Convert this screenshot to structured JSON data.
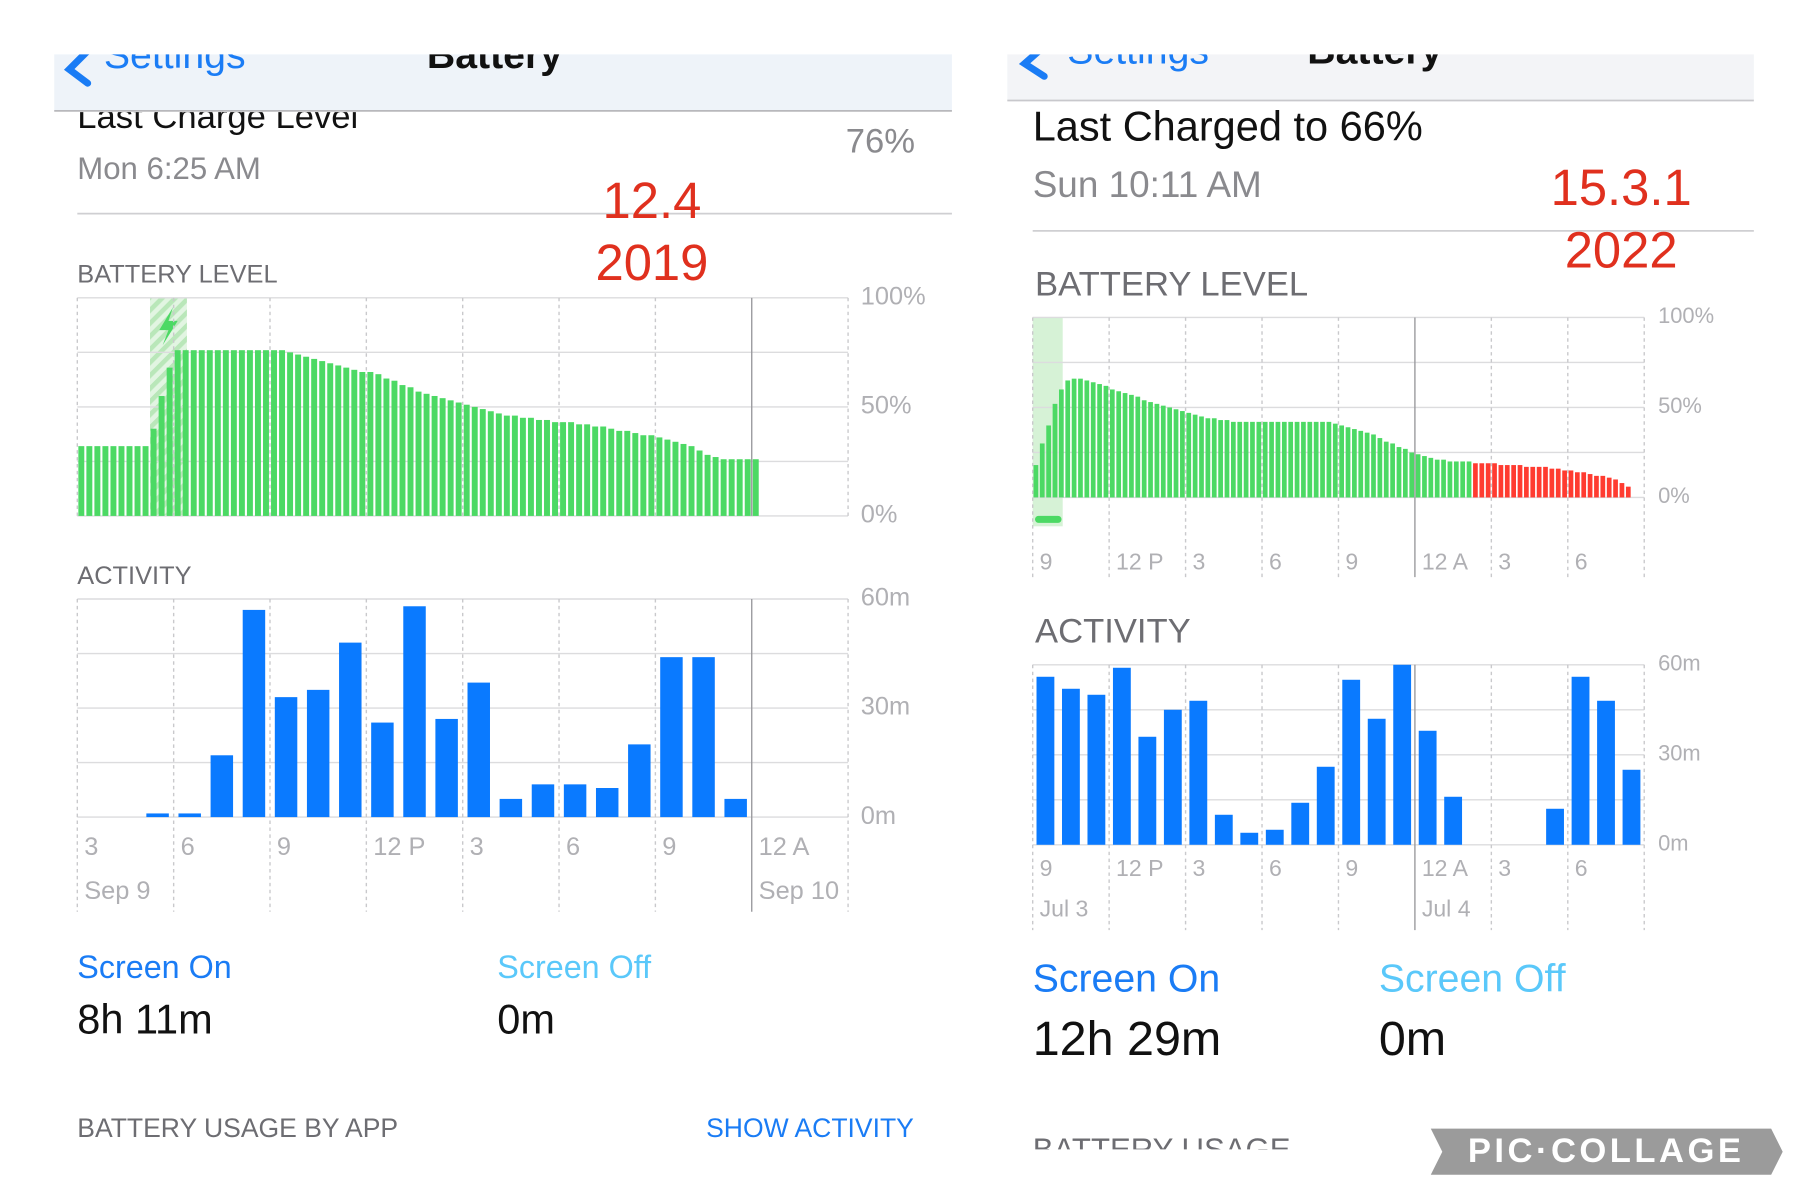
{
  "panels": [
    {
      "nav": {
        "back": "Settings",
        "title": "Battery"
      },
      "charge": {
        "title": "Last Charge Level",
        "time": "Mon 6:25 AM",
        "level": "76%"
      },
      "annotation": [
        "12.4",
        "2019"
      ],
      "battery": {
        "type": "bar",
        "title": "BATTERY LEVEL",
        "color": "#4cd964",
        "values": [
          32,
          32,
          32,
          32,
          32,
          32,
          32,
          32,
          32,
          40,
          55,
          68,
          76,
          76,
          76,
          76,
          76,
          76,
          76,
          76,
          76,
          76,
          76,
          76,
          76,
          76,
          75,
          74,
          73,
          72,
          71,
          70,
          69,
          68,
          67,
          66,
          66,
          65,
          63,
          62,
          60,
          59,
          57,
          56,
          55,
          54,
          53,
          52,
          51,
          50,
          49,
          48,
          47,
          46,
          46,
          45,
          45,
          44,
          44,
          43,
          43,
          43,
          42,
          42,
          41,
          41,
          40,
          39,
          39,
          38,
          37,
          37,
          36,
          35,
          34,
          33,
          32,
          30,
          28,
          27,
          26,
          26,
          26,
          26,
          26
        ],
        "ylim": [
          0,
          100
        ],
        "ygrid": [
          0,
          25,
          50,
          75,
          100
        ],
        "yticks": [
          {
            "value": 100,
            "label": "100%"
          },
          {
            "value": 50,
            "label": "50%"
          },
          {
            "value": 0,
            "label": "0%"
          }
        ]
      },
      "activity": {
        "type": "bar",
        "title": "ACTIVITY",
        "color": "#0a7aff",
        "values": [
          null,
          null,
          1,
          1,
          17,
          57,
          33,
          35,
          48,
          26,
          58,
          27,
          37,
          5,
          9,
          9,
          8,
          20,
          44,
          44,
          5,
          null,
          null,
          null
        ],
        "ylim": [
          0,
          60
        ],
        "ygrid": [
          0,
          15,
          30,
          45,
          60
        ],
        "yticks": [
          {
            "value": 60,
            "label": "60m"
          },
          {
            "value": 30,
            "label": "30m"
          },
          {
            "value": 0,
            "label": "0m"
          }
        ],
        "xlabels": [
          "3",
          "6",
          "9",
          "12 P",
          "3",
          "6",
          "9",
          "12 A"
        ],
        "dates": [
          "Sep 9",
          null,
          null,
          null,
          null,
          null,
          null,
          "Sep 10"
        ]
      },
      "screen_on": {
        "label": "Screen On",
        "value": "8h 11m"
      },
      "screen_off": {
        "label": "Screen Off",
        "value": "0m"
      },
      "usage": {
        "title": "BATTERY USAGE BY APP",
        "action": "SHOW ACTIVITY"
      }
    },
    {
      "nav": {
        "back": "Settings",
        "title": "Battery"
      },
      "charge": {
        "title": "Last Charged to 66%",
        "time": "Sun 10:11 AM"
      },
      "annotation": [
        "15.3.1",
        "2022"
      ],
      "battery": {
        "type": "bar",
        "title": "BATTERY LEVEL",
        "values": [
          18,
          30,
          40,
          52,
          60,
          65,
          66,
          66,
          65,
          64,
          63,
          62,
          60,
          59,
          58,
          57,
          56,
          54,
          53,
          52,
          51,
          50,
          49,
          48,
          47,
          46,
          45,
          44,
          44,
          43,
          43,
          42,
          42,
          42,
          42,
          42,
          42,
          42,
          42,
          42,
          42,
          42,
          42,
          42,
          42,
          42,
          42,
          41,
          40,
          39,
          38,
          37,
          36,
          35,
          33,
          31,
          30,
          28,
          27,
          25,
          24,
          23,
          22,
          21,
          21,
          20,
          20,
          20,
          20,
          19,
          19,
          19,
          19,
          18,
          18,
          18,
          18,
          17,
          17,
          17,
          17,
          16,
          16,
          15,
          15,
          14,
          14,
          13,
          12,
          12,
          11,
          10,
          8,
          6
        ],
        "colors": [
          "#4cd964",
          "#4cd964",
          "#4cd964",
          "#4cd964",
          "#4cd964",
          "#4cd964",
          "#4cd964",
          "#4cd964",
          "#4cd964",
          "#4cd964",
          "#4cd964",
          "#4cd964",
          "#4cd964",
          "#4cd964",
          "#4cd964",
          "#4cd964",
          "#4cd964",
          "#4cd964",
          "#4cd964",
          "#4cd964",
          "#4cd964",
          "#4cd964",
          "#4cd964",
          "#4cd964",
          "#4cd964",
          "#4cd964",
          "#4cd964",
          "#4cd964",
          "#4cd964",
          "#4cd964",
          "#4cd964",
          "#4cd964",
          "#4cd964",
          "#4cd964",
          "#4cd964",
          "#4cd964",
          "#4cd964",
          "#4cd964",
          "#4cd964",
          "#4cd964",
          "#4cd964",
          "#4cd964",
          "#4cd964",
          "#4cd964",
          "#4cd964",
          "#4cd964",
          "#4cd964",
          "#4cd964",
          "#4cd964",
          "#4cd964",
          "#4cd964",
          "#4cd964",
          "#4cd964",
          "#4cd964",
          "#4cd964",
          "#4cd964",
          "#4cd964",
          "#4cd964",
          "#4cd964",
          "#4cd964",
          "#4cd964",
          "#4cd964",
          "#4cd964",
          "#4cd964",
          "#4cd964",
          "#4cd964",
          "#4cd964",
          "#4cd964",
          "#4cd964",
          "#ff3b30",
          "#ff3b30",
          "#ff3b30",
          "#ff3b30",
          "#ff3b30",
          "#ff3b30",
          "#ff3b30",
          "#ff3b30",
          "#ff3b30",
          "#ff3b30",
          "#ff3b30",
          "#ff3b30",
          "#ff3b30",
          "#ff3b30",
          "#ff3b30",
          "#ff3b30",
          "#ff3b30",
          "#ff3b30",
          "#ff3b30",
          "#ff3b30",
          "#ff3b30",
          "#ff3b30",
          "#ff3b30",
          "#ff3b30",
          "#ff3b30"
        ],
        "ylim": [
          0,
          100
        ],
        "ygrid": [
          0,
          25,
          50,
          75,
          100
        ],
        "yticks": [
          {
            "value": 100,
            "label": "100%"
          },
          {
            "value": 50,
            "label": "50%"
          },
          {
            "value": 0,
            "label": "0%"
          }
        ],
        "xlabels": [
          "9",
          "12 P",
          "3",
          "6",
          "9",
          "12 A",
          "3",
          "6"
        ]
      },
      "activity": {
        "type": "bar",
        "title": "ACTIVITY",
        "color": "#0a7aff",
        "values": [
          56,
          52,
          50,
          59,
          36,
          45,
          48,
          10,
          4,
          5,
          14,
          26,
          55,
          42,
          60,
          38,
          16,
          0,
          0,
          0,
          12,
          56,
          48,
          25
        ],
        "ylim": [
          0,
          60
        ],
        "ygrid": [
          0,
          15,
          30,
          45,
          60
        ],
        "yticks": [
          {
            "value": 60,
            "label": "60m"
          },
          {
            "value": 30,
            "label": "30m"
          },
          {
            "value": 0,
            "label": "0m"
          }
        ],
        "xlabels": [
          "9",
          "12 P",
          "3",
          "6",
          "9",
          "12 A",
          "3",
          "6"
        ],
        "dates": [
          "Jul 3",
          null,
          null,
          null,
          null,
          "Jul 4",
          null,
          null
        ]
      },
      "screen_on": {
        "label": "Screen On",
        "value": "12h 29m"
      },
      "screen_off": {
        "label": "Screen Off",
        "value": "0m"
      },
      "usage": {
        "title": "BATTERY USAGE"
      }
    }
  ],
  "watermark": "PIC·COLLAGE"
}
